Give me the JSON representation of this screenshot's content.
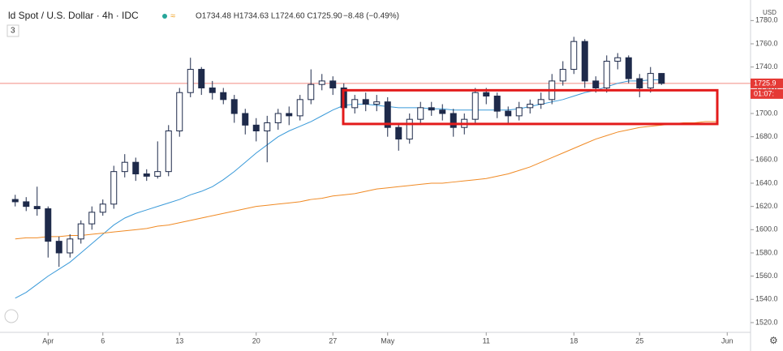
{
  "header": {
    "symbol": "ld Spot / U.S. Dollar · 4h · IDC",
    "ohlc": "O1734.48 H1734.63 L1724.60 C1725.90",
    "change": "−8.48 (−0.49%)",
    "badge": "3",
    "currency": "USD",
    "price_label": "1725.9",
    "countdown": "01:07:"
  },
  "chart_data": {
    "type": "candlestick",
    "categories": [
      null,
      null,
      null,
      "Apr",
      null,
      null,
      null,
      null,
      "6",
      null,
      null,
      null,
      null,
      null,
      null,
      "13",
      null,
      null,
      null,
      null,
      null,
      null,
      "20",
      null,
      null,
      null,
      null,
      null,
      null,
      "27",
      null,
      null,
      null,
      null,
      "May",
      null,
      null,
      null,
      null,
      null,
      null,
      null,
      null,
      "11",
      null,
      null,
      null,
      null,
      null,
      null,
      null,
      "18",
      null,
      null,
      null,
      null,
      null,
      "25",
      null,
      null,
      null,
      null,
      null,
      null,
      null,
      "Jun",
      null,
      null
    ],
    "open": [
      1626,
      1624,
      1620,
      1618,
      1590,
      1580,
      1592,
      1605,
      1615,
      1622,
      1650,
      1658,
      1648,
      1646,
      1650,
      1685,
      1718,
      1738,
      1722,
      1718,
      1712,
      1700,
      1690,
      1685,
      1692,
      1700,
      1698,
      1712,
      1725,
      1728,
      1722,
      1705,
      1712,
      1708,
      1710,
      1688,
      1678,
      1695,
      1705,
      1703,
      1700,
      1688,
      1695,
      1718,
      1715,
      1702,
      1698,
      1705,
      1708,
      1712,
      1728,
      1738,
      1762,
      1728,
      1722,
      1745,
      1748,
      1730,
      1722,
      1734.48,
      null,
      null,
      null,
      null,
      null,
      null,
      null,
      null
    ],
    "high": [
      1630,
      1628,
      1637,
      1620,
      1594,
      1596,
      1608,
      1620,
      1626,
      1655,
      1665,
      1662,
      1652,
      1676,
      1690,
      1722,
      1748,
      1740,
      1728,
      1722,
      1716,
      1704,
      1696,
      1698,
      1704,
      1706,
      1716,
      1738,
      1734,
      1732,
      1726,
      1716,
      1718,
      1716,
      1714,
      1692,
      1700,
      1710,
      1710,
      1708,
      1704,
      1700,
      1722,
      1722,
      1718,
      1706,
      1710,
      1712,
      1718,
      1734,
      1745,
      1766,
      1764,
      1732,
      1750,
      1752,
      1750,
      1734,
      1740,
      1734.63,
      null,
      null,
      null,
      null,
      null,
      null,
      null,
      null
    ],
    "low": [
      1620,
      1616,
      1612,
      1576,
      1568,
      1576,
      1588,
      1600,
      1612,
      1618,
      1645,
      1642,
      1642,
      1644,
      1646,
      1680,
      1714,
      1716,
      1712,
      1708,
      1692,
      1682,
      1676,
      1658,
      1686,
      1690,
      1694,
      1708,
      1720,
      1716,
      1694,
      1700,
      1702,
      1702,
      1680,
      1668,
      1674,
      1690,
      1698,
      1694,
      1680,
      1682,
      1692,
      1708,
      1696,
      1692,
      1694,
      1700,
      1704,
      1708,
      1724,
      1734,
      1722,
      1718,
      1718,
      1738,
      1726,
      1714,
      1718,
      1724.6,
      null,
      null,
      null,
      null,
      null,
      null,
      null,
      null
    ],
    "close": [
      1624,
      1620,
      1618,
      1590,
      1580,
      1592,
      1605,
      1615,
      1622,
      1650,
      1658,
      1648,
      1646,
      1650,
      1685,
      1718,
      1738,
      1722,
      1718,
      1712,
      1700,
      1690,
      1685,
      1692,
      1700,
      1698,
      1712,
      1725,
      1728,
      1722,
      1705,
      1712,
      1708,
      1710,
      1688,
      1678,
      1695,
      1705,
      1703,
      1700,
      1688,
      1695,
      1718,
      1715,
      1702,
      1698,
      1705,
      1708,
      1712,
      1728,
      1738,
      1762,
      1728,
      1722,
      1745,
      1748,
      1730,
      1722,
      1734.48,
      1725.9,
      null,
      null,
      null,
      null,
      null,
      null,
      null,
      null
    ],
    "up_color": "#ffffff",
    "down_color": "#1e2a4a",
    "edge_color": "#1e2a4a",
    "series": [
      {
        "color": "#3a9ad9",
        "values": [
          1541,
          1546,
          1553,
          1560,
          1566,
          1572,
          1580,
          1588,
          1596,
          1604,
          1610,
          1614,
          1617,
          1620,
          1623,
          1626,
          1630,
          1633,
          1637,
          1643,
          1650,
          1658,
          1666,
          1673,
          1680,
          1685,
          1689,
          1693,
          1698,
          1703,
          1707,
          1708,
          1708,
          1707,
          1706,
          1705,
          1705,
          1705,
          1704,
          1704,
          1703,
          1703,
          1703,
          1703,
          1703,
          1703,
          1704,
          1706,
          1708,
          1710,
          1712,
          1715,
          1718,
          1720,
          1723,
          1726,
          1728,
          1728,
          1729,
          1729,
          null,
          null,
          null,
          null,
          null,
          null,
          null,
          null
        ]
      },
      {
        "color": "#f08a24",
        "values": [
          1592,
          1593,
          1593,
          1594,
          1594,
          1595,
          1595,
          1596,
          1597,
          1598,
          1599,
          1600,
          1601,
          1603,
          1604,
          1606,
          1608,
          1610,
          1612,
          1614,
          1616,
          1618,
          1620,
          1621,
          1622,
          1623,
          1624,
          1626,
          1627,
          1629,
          1630,
          1631,
          1633,
          1635,
          1636,
          1637,
          1638,
          1639,
          1640,
          1640,
          1641,
          1642,
          1643,
          1644,
          1646,
          1648,
          1651,
          1654,
          1658,
          1662,
          1666,
          1670,
          1674,
          1678,
          1681,
          1684,
          1686,
          1688,
          1689,
          1690,
          1691,
          1692,
          1692,
          1693,
          1693,
          null,
          null,
          null
        ]
      }
    ],
    "zone": {
      "ylim": [
        1691,
        1720
      ],
      "color": "#e31b1b"
    },
    "price_line_color": "#f28b82",
    "ylim": [
      1511.6,
      1797.7
    ],
    "yticks": [
      {
        "value": 1520,
        "label": "1520.0"
      },
      {
        "value": 1540,
        "label": "1540.0"
      },
      {
        "value": 1560,
        "label": "1560.0"
      },
      {
        "value": 1580,
        "label": "1580.0"
      },
      {
        "value": 1600,
        "label": "1600.0"
      },
      {
        "value": 1620,
        "label": "1620.0"
      },
      {
        "value": 1640,
        "label": "1640.0"
      },
      {
        "value": 1660,
        "label": "1660.0"
      },
      {
        "value": 1680,
        "label": "1680.0"
      },
      {
        "value": 1700,
        "label": "1700.0"
      },
      {
        "value": 1720,
        "label": "1720.0"
      },
      {
        "value": 1740,
        "label": "1740.0"
      },
      {
        "value": 1760,
        "label": "1760.0"
      },
      {
        "value": 1780,
        "label": "1780.0"
      }
    ]
  }
}
